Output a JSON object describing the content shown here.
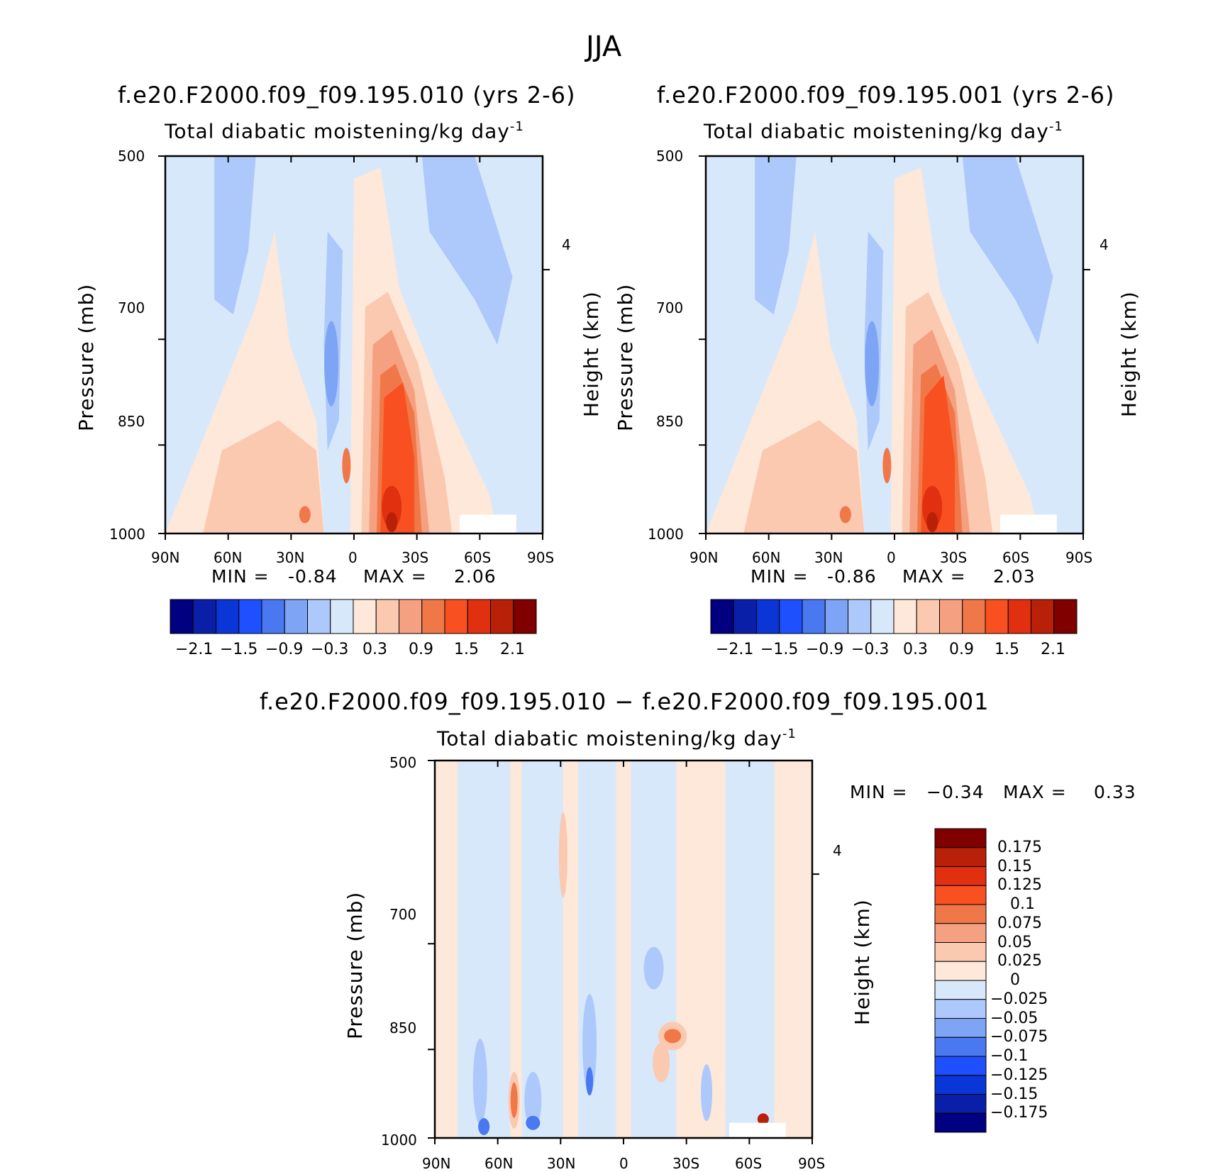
{
  "figure_title": "JJA",
  "colors": {
    "blue_red_scale": [
      "#000080",
      "#0a1fa8",
      "#0a36d8",
      "#1f50ff",
      "#4978f0",
      "#7da4f5",
      "#adc8fa",
      "#d8e8fb",
      "#fde8d9",
      "#fbc8b0",
      "#f5a080",
      "#f07848",
      "#f85020",
      "#e03010",
      "#b82008",
      "#800000"
    ]
  },
  "chart_data": [
    {
      "type": "contour",
      "title": "f.e20.F2000.f09_f09.195.010 (yrs 2-6)",
      "subtitle": "Total diabatic moistening/kg day",
      "subtitle_exponent": "-1",
      "ylabel": "Pressure (mb)",
      "right_label": "Height (km)",
      "xticks": [
        "90N",
        "60N",
        "30N",
        "0",
        "30S",
        "60S",
        "90S"
      ],
      "yticks": [
        "500",
        "700",
        "850",
        "1000"
      ],
      "right_ticks": [
        "4"
      ],
      "ylim": [
        1000,
        500
      ],
      "min_label": "MIN =",
      "min_value": "-0.84",
      "max_label": "MAX =",
      "max_value": "2.06",
      "colorbar_labels": [
        "−2.1",
        "−1.5",
        "−0.9",
        "−0.3",
        "0.3",
        "0.9",
        "1.5",
        "2.1"
      ]
    },
    {
      "type": "contour",
      "title": "f.e20.F2000.f09_f09.195.001 (yrs 2-6)",
      "subtitle": "Total diabatic moistening/kg day",
      "subtitle_exponent": "-1",
      "ylabel": "Pressure (mb)",
      "right_label": "Height (km)",
      "xticks": [
        "90N",
        "60N",
        "30N",
        "0",
        "30S",
        "60S",
        "90S"
      ],
      "yticks": [
        "500",
        "700",
        "850",
        "1000"
      ],
      "right_ticks": [
        "4"
      ],
      "ylim": [
        1000,
        500
      ],
      "min_label": "MIN =",
      "min_value": "-0.86",
      "max_label": "MAX =",
      "max_value": "2.03",
      "colorbar_labels": [
        "−2.1",
        "−1.5",
        "−0.9",
        "−0.3",
        "0.3",
        "0.9",
        "1.5",
        "2.1"
      ]
    },
    {
      "type": "contour",
      "title": "f.e20.F2000.f09_f09.195.010 − f.e20.F2000.f09_f09.195.001",
      "subtitle": "Total diabatic moistening/kg day",
      "subtitle_exponent": "-1",
      "ylabel": "Pressure (mb)",
      "right_label": "Height (km)",
      "xticks": [
        "90N",
        "60N",
        "30N",
        "0",
        "30S",
        "60S",
        "90S"
      ],
      "yticks": [
        "500",
        "700",
        "850",
        "1000"
      ],
      "right_ticks": [
        "4"
      ],
      "ylim": [
        1000,
        500
      ],
      "min_label": "MIN =",
      "min_value": "−0.34",
      "max_label": "MAX =",
      "max_value": "0.33",
      "colorbar_labels": [
        "0.175",
        "0.15",
        "0.125",
        "0.1",
        "0.075",
        "0.05",
        "0.025",
        "0",
        "−0.025",
        "−0.05",
        "−0.075",
        "−0.1",
        "−0.125",
        "−0.15",
        "−0.175"
      ]
    }
  ]
}
